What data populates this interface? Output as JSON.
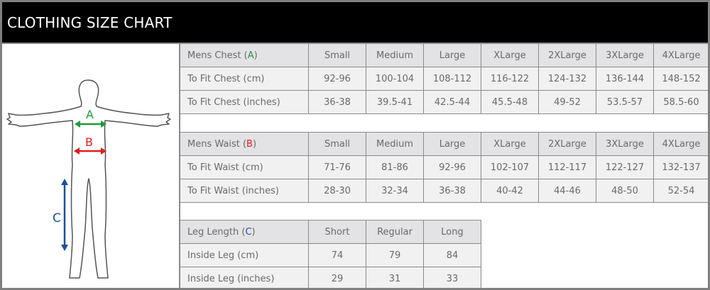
{
  "title": "CLOTHING SIZE CHART",
  "colors": {
    "A": "#1e9a3c",
    "B": "#e01e1e",
    "C": "#1a4fa0"
  },
  "figure": {
    "label_a": "A",
    "label_b": "B",
    "label_c": "C",
    "icon": "human-body-measurement-diagram"
  },
  "tables": [
    {
      "header": {
        "prefix": "Mens Chest (",
        "letter": "A",
        "suffix": ")",
        "columns": [
          "Small",
          "Medium",
          "Large",
          "XLarge",
          "2XLarge",
          "3XLarge",
          "4XLarge"
        ]
      },
      "rows": [
        {
          "label": "To Fit Chest (cm)",
          "values": [
            "92-96",
            "100-104",
            "108-112",
            "116-122",
            "124-132",
            "136-144",
            "148-152"
          ]
        },
        {
          "label": "To Fit Chest (inches)",
          "values": [
            "36-38",
            "39.5-41",
            "42.5-44",
            "45.5-48",
            "49-52",
            "53.5-57",
            "58.5-60"
          ]
        }
      ]
    },
    {
      "header": {
        "prefix": "Mens Waist (",
        "letter": "B",
        "suffix": ")",
        "columns": [
          "Small",
          "Medium",
          "Large",
          "XLarge",
          "2XLarge",
          "3XLarge",
          "4XLarge"
        ]
      },
      "rows": [
        {
          "label": "To Fit Waist (cm)",
          "values": [
            "71-76",
            "81-86",
            "92-96",
            "102-107",
            "112-117",
            "122-127",
            "132-137"
          ]
        },
        {
          "label": "To Fit Waist (inches)",
          "values": [
            "28-30",
            "32-34",
            "36-38",
            "40-42",
            "44-46",
            "48-50",
            "52-54"
          ]
        }
      ]
    },
    {
      "header": {
        "prefix": "Leg Length (",
        "letter": "C",
        "suffix": ")",
        "columns": [
          "Short",
          "Regular",
          "Long"
        ]
      },
      "rows": [
        {
          "label": "Inside Leg (cm)",
          "values": [
            "74",
            "79",
            "84"
          ]
        },
        {
          "label": "Inside Leg (inches)",
          "values": [
            "29",
            "31",
            "33"
          ]
        }
      ]
    }
  ]
}
